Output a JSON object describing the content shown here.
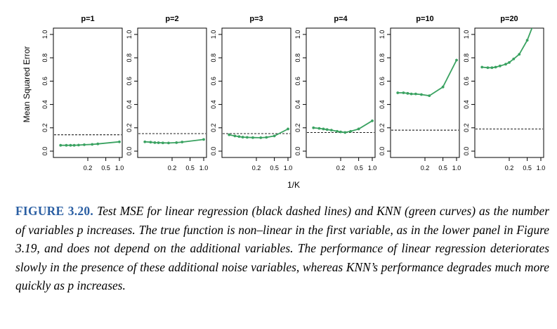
{
  "chart_data": {
    "type": "line",
    "panels": [
      {
        "title": "p=1",
        "knn": {
          "x": [
            0.05,
            0.067,
            0.083,
            0.1,
            0.125,
            0.167,
            0.25,
            0.333,
            1.0
          ],
          "y": [
            0.05,
            0.05,
            0.05,
            0.05,
            0.052,
            0.055,
            0.058,
            0.062,
            0.08
          ]
        },
        "linear": 0.14
      },
      {
        "title": "p=2",
        "knn": {
          "x": [
            0.05,
            0.067,
            0.083,
            0.1,
            0.125,
            0.167,
            0.25,
            0.333,
            1.0
          ],
          "y": [
            0.08,
            0.077,
            0.073,
            0.072,
            0.071,
            0.07,
            0.073,
            0.078,
            0.1
          ]
        },
        "linear": 0.15
      },
      {
        "title": "p=3",
        "knn": {
          "x": [
            0.05,
            0.067,
            0.083,
            0.1,
            0.125,
            0.167,
            0.25,
            0.333,
            0.5,
            1.0
          ],
          "y": [
            0.14,
            0.13,
            0.125,
            0.12,
            0.118,
            0.116,
            0.115,
            0.118,
            0.13,
            0.19
          ]
        },
        "linear": 0.15
      },
      {
        "title": "p=4",
        "knn": {
          "x": [
            0.05,
            0.067,
            0.083,
            0.1,
            0.125,
            0.167,
            0.2,
            0.25,
            0.333,
            0.5,
            1.0
          ],
          "y": [
            0.2,
            0.195,
            0.19,
            0.185,
            0.18,
            0.17,
            0.165,
            0.16,
            0.17,
            0.19,
            0.26
          ]
        },
        "linear": 0.16
      },
      {
        "title": "p=10",
        "knn": {
          "x": [
            0.05,
            0.067,
            0.083,
            0.1,
            0.125,
            0.167,
            0.25,
            0.5,
            1.0
          ],
          "y": [
            0.5,
            0.5,
            0.495,
            0.49,
            0.49,
            0.485,
            0.475,
            0.55,
            0.78
          ]
        },
        "linear": 0.18
      },
      {
        "title": "p=20",
        "knn": {
          "x": [
            0.05,
            0.067,
            0.083,
            0.1,
            0.125,
            0.167,
            0.2,
            0.25,
            0.333,
            0.5,
            1.0
          ],
          "y": [
            0.72,
            0.715,
            0.715,
            0.72,
            0.73,
            0.745,
            0.76,
            0.79,
            0.83,
            0.95,
            1.25
          ]
        },
        "linear": 0.19
      }
    ],
    "xlabel": "1/K",
    "ylabel": "Mean Squared Error",
    "xscale": "log",
    "xlim": [
      0.04,
      1.0
    ],
    "ylim": [
      0,
      1.0
    ],
    "xticks": [
      0.2,
      0.5,
      1.0
    ],
    "xtick_labels": [
      "0.2",
      "0.5",
      "1.0"
    ],
    "yticks": [
      0,
      0.2,
      0.4,
      0.6,
      0.8,
      1.0
    ],
    "ytick_labels": [
      "0.0",
      "0.2",
      "0.4",
      "0.6",
      "0.8",
      "1.0"
    ],
    "grid": false,
    "colors": {
      "knn": "#3aa261",
      "linear": "#000000"
    }
  },
  "caption": {
    "label": "FIGURE 3.20.",
    "text": " Test MSE for linear regression (black dashed lines) and KNN (green curves) as the number of variables p increases. The true function is non–linear in the first variable, as in the lower panel in Figure 3.19, and does not depend on the additional variables. The performance of linear regression deteriorates slowly in the presence of these additional noise variables, whereas KNN’s performance degrades much more quickly as p increases."
  }
}
